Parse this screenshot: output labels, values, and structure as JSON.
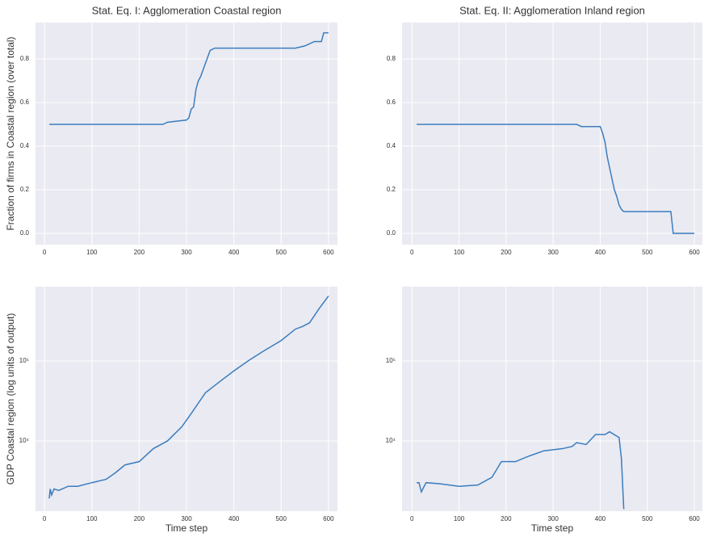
{
  "chart_data": [
    {
      "type": "line",
      "title": "Stat. Eq. I: Agglomeration Coastal region",
      "ylabel": "Fraction of firms in Coastal region (over total)",
      "x": [
        10,
        250,
        260,
        300,
        305,
        310,
        315,
        320,
        325,
        330,
        340,
        350,
        360,
        530,
        550,
        570,
        585,
        590,
        600
      ],
      "series": [
        {
          "color": "#3a7dbf",
          "values": [
            0.5,
            0.5,
            0.51,
            0.52,
            0.53,
            0.57,
            0.58,
            0.66,
            0.7,
            0.72,
            0.78,
            0.84,
            0.85,
            0.85,
            0.86,
            0.88,
            0.88,
            0.92,
            0.92
          ]
        }
      ],
      "xlim": [
        -19,
        619
      ],
      "xticks": [
        0,
        100,
        200,
        300,
        400,
        500,
        600
      ],
      "ylim": [
        -0.052,
        0.967
      ],
      "yticks": [
        {
          "value": 0,
          "label": "0.0"
        },
        0.2,
        0.4,
        0.6,
        0.8
      ],
      "grid": true,
      "log_scale": false
    },
    {
      "type": "line",
      "title": "Stat. Eq. II: Agglomeration Inland region",
      "x": [
        10,
        350,
        360,
        400,
        405,
        410,
        415,
        420,
        425,
        430,
        435,
        440,
        445,
        450,
        550,
        555,
        600
      ],
      "series": [
        {
          "color": "#3a7dbf",
          "values": [
            0.5,
            0.5,
            0.49,
            0.49,
            0.46,
            0.42,
            0.35,
            0.3,
            0.25,
            0.2,
            0.17,
            0.13,
            0.11,
            0.1,
            0.1,
            0.0,
            0.0
          ]
        }
      ],
      "xlim": [
        -21,
        617
      ],
      "xticks": [
        0,
        100,
        200,
        300,
        400,
        500,
        600
      ],
      "ylim": [
        -0.052,
        0.967
      ],
      "yticks": [
        {
          "value": 0,
          "label": "0.0"
        },
        0.2,
        0.4,
        0.6,
        0.8
      ],
      "grid": true,
      "log_scale": false
    },
    {
      "type": "line",
      "ylabel": "GDP Coastal region (log units of output)",
      "xlabel": "Time step",
      "x": [
        10,
        12,
        15,
        20,
        30,
        50,
        70,
        100,
        130,
        150,
        170,
        200,
        230,
        260,
        290,
        310,
        340,
        370,
        400,
        430,
        460,
        500,
        530,
        545,
        560,
        580,
        600
      ],
      "series": [
        {
          "color": "#3a7dbf",
          "values": [
            1900,
            2500,
            2100,
            2500,
            2400,
            2700,
            2700,
            3000,
            3300,
            4000,
            5000,
            5500,
            8000,
            10000,
            15000,
            22000,
            40000,
            55000,
            75000,
            100000,
            130000,
            180000,
            250000,
            270000,
            300000,
            450000,
            650000
          ]
        }
      ],
      "xlim": [
        -19,
        619
      ],
      "xticks": [
        0,
        100,
        200,
        300,
        400,
        500,
        600
      ],
      "ylim": [
        1320,
        850000
      ],
      "yticks": [
        {
          "value": 10000,
          "label": "10⁴"
        },
        {
          "value": 100000,
          "label": "10⁵"
        }
      ],
      "grid": true,
      "log_scale": true
    },
    {
      "type": "line",
      "xlabel": "Time step",
      "x": [
        10,
        15,
        20,
        30,
        60,
        100,
        140,
        170,
        190,
        220,
        250,
        280,
        320,
        340,
        350,
        370,
        390,
        410,
        420,
        440,
        445,
        450
      ],
      "series": [
        {
          "color": "#3a7dbf",
          "values": [
            3000,
            3000,
            2300,
            3000,
            2900,
            2700,
            2800,
            3500,
            5500,
            5500,
            6500,
            7500,
            8000,
            8500,
            9500,
            9000,
            12000,
            12000,
            13000,
            11000,
            6000,
            1400
          ]
        }
      ],
      "xlim": [
        -21,
        617
      ],
      "xticks": [
        0,
        100,
        200,
        300,
        400,
        500,
        600
      ],
      "ylim": [
        1320,
        850000
      ],
      "yticks": [
        {
          "value": 10000,
          "label": "10⁴"
        },
        {
          "value": 100000,
          "label": "10⁵"
        }
      ],
      "grid": true,
      "log_scale": true
    }
  ]
}
